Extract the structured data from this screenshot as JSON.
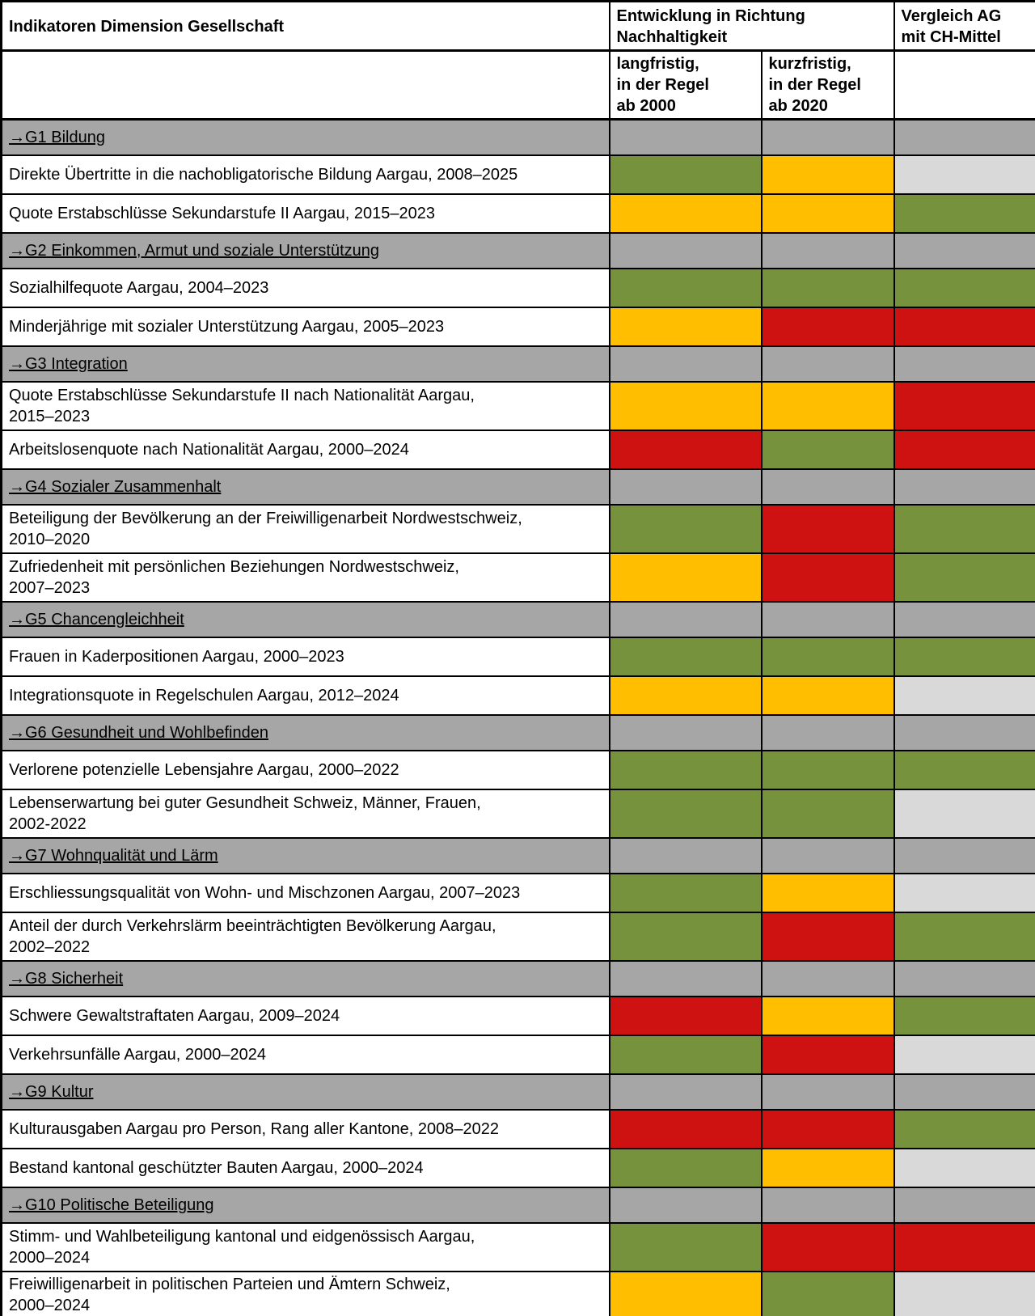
{
  "header": {
    "indicator_col": "Indikatoren Dimension Gesellschaft",
    "development_col": "Entwicklung in Richtung\nNachhaltigkeit",
    "comparison_col": "Vergleich AG\nmit CH-Mittel",
    "sub_longterm": "langfristig,\nin der Regel\nab 2000",
    "sub_shortterm": "kurzfristig,\nin der Regel\nab 2020"
  },
  "colors": {
    "green": "#76923C",
    "yellow": "#FFBF00",
    "red": "#CE1212",
    "lightgray": "#D9D9D9",
    "section_gray": "#A6A6A6"
  },
  "sections": [
    {
      "label": "→G1 Bildung",
      "rows": [
        {
          "label": "Direkte Übertritte in die nachobligatorische Bildung Aargau, 2008–2025",
          "cells": [
            "green",
            "yellow",
            "lightgray"
          ]
        },
        {
          "label": "Quote Erstabschlüsse Sekundarstufe II Aargau, 2015–2023",
          "cells": [
            "yellow",
            "yellow",
            "green"
          ]
        }
      ]
    },
    {
      "label": "→G2 Einkommen, Armut und soziale Unterstützung",
      "rows": [
        {
          "label": "Sozialhilfequote Aargau, 2004–2023",
          "cells": [
            "green",
            "green",
            "green"
          ]
        },
        {
          "label": "Minderjährige mit sozialer Unterstützung Aargau, 2005–2023",
          "cells": [
            "yellow",
            "red",
            "red"
          ]
        }
      ]
    },
    {
      "label": "→G3 Integration",
      "rows": [
        {
          "label": "Quote Erstabschlüsse Sekundarstufe II nach Nationalität Aargau,\n2015–2023",
          "cells": [
            "yellow",
            "yellow",
            "red"
          ]
        },
        {
          "label": "Arbeitslosenquote nach Nationalität Aargau, 2000–2024",
          "cells": [
            "red",
            "green",
            "red"
          ]
        }
      ]
    },
    {
      "label": "→G4 Sozialer Zusammenhalt",
      "rows": [
        {
          "label": "Beteiligung der Bevölkerung an der Freiwilligenarbeit Nordwestschweiz,\n2010–2020",
          "cells": [
            "green",
            "red",
            "green"
          ]
        },
        {
          "label": "Zufriedenheit mit persönlichen Beziehungen Nordwestschweiz,\n2007–2023",
          "cells": [
            "yellow",
            "red",
            "green"
          ]
        }
      ]
    },
    {
      "label": "→G5 Chancengleichheit",
      "rows": [
        {
          "label": "Frauen in Kaderpositionen Aargau, 2000–2023",
          "cells": [
            "green",
            "green",
            "green"
          ]
        },
        {
          "label": "Integrationsquote in Regelschulen Aargau, 2012–2024",
          "cells": [
            "yellow",
            "yellow",
            "lightgray"
          ]
        }
      ]
    },
    {
      "label": "→G6 Gesundheit und Wohlbefinden",
      "rows": [
        {
          "label": "Verlorene potenzielle Lebensjahre Aargau, 2000–2022",
          "cells": [
            "green",
            "green",
            "green"
          ]
        },
        {
          "label": "Lebenserwartung bei guter Gesundheit Schweiz, Männer, Frauen,\n2002-2022",
          "cells": [
            "green",
            "green",
            "lightgray"
          ]
        }
      ]
    },
    {
      "label": "→G7 Wohnqualität und Lärm",
      "rows": [
        {
          "label": "Erschliessungsqualität von Wohn- und Mischzonen Aargau, 2007–2023",
          "cells": [
            "green",
            "yellow",
            "lightgray"
          ]
        },
        {
          "label": "Anteil der durch Verkehrslärm beeinträchtigten Bevölkerung Aargau,\n2002–2022",
          "cells": [
            "green",
            "red",
            "green"
          ]
        }
      ]
    },
    {
      "label": "→G8 Sicherheit",
      "rows": [
        {
          "label": "Schwere Gewaltstraftaten Aargau, 2009–2024",
          "cells": [
            "red",
            "yellow",
            "green"
          ]
        },
        {
          "label": "Verkehrsunfälle Aargau, 2000–2024",
          "cells": [
            "green",
            "red",
            "lightgray"
          ]
        }
      ]
    },
    {
      "label": "→G9 Kultur",
      "rows": [
        {
          "label": "Kulturausgaben Aargau pro Person, Rang aller Kantone, 2008–2022",
          "cells": [
            "red",
            "red",
            "green"
          ]
        },
        {
          "label": "Bestand kantonal geschützter Bauten Aargau, 2000–2024",
          "cells": [
            "green",
            "yellow",
            "lightgray"
          ]
        }
      ]
    },
    {
      "label": "→G10 Politische Beteiligung",
      "rows": [
        {
          "label": "Stimm- und Wahlbeteiligung kantonal und eidgenössisch Aargau,\n2000–2024",
          "cells": [
            "green",
            "red",
            "red"
          ]
        },
        {
          "label": "Freiwilligenarbeit in politischen Parteien und Ämtern Schweiz,\n2000–2024",
          "cells": [
            "yellow",
            "green",
            "lightgray"
          ]
        }
      ]
    }
  ]
}
